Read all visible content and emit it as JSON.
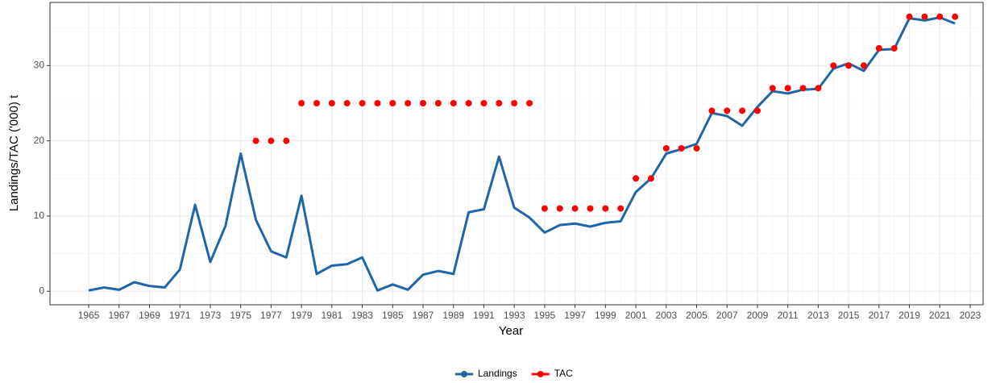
{
  "chart_data": {
    "type": "line",
    "x_label": "Year",
    "y_label": "Landings/TAC ('000) t",
    "xlim": [
      1962.45,
      2023.85
    ],
    "ylim": [
      -1.8,
      38.4
    ],
    "xticks": [
      1965,
      1967,
      1969,
      1971,
      1973,
      1975,
      1977,
      1979,
      1981,
      1983,
      1985,
      1987,
      1989,
      1991,
      1993,
      1995,
      1997,
      1999,
      2001,
      2003,
      2005,
      2007,
      2009,
      2011,
      2013,
      2015,
      2017,
      2019,
      2021,
      2023
    ],
    "yticks": [
      0,
      10,
      20,
      30
    ],
    "grid": true,
    "minor_grid": true,
    "legend": "bottom",
    "series": [
      {
        "name": "Landings",
        "color": "#1f66a8",
        "style": "line",
        "x": [
          1965,
          1966,
          1967,
          1968,
          1969,
          1970,
          1971,
          1972,
          1973,
          1974,
          1975,
          1976,
          1977,
          1978,
          1979,
          1980,
          1981,
          1982,
          1983,
          1984,
          1985,
          1986,
          1987,
          1988,
          1989,
          1990,
          1991,
          1992,
          1993,
          1994,
          1995,
          1996,
          1997,
          1998,
          1999,
          2000,
          2001,
          2002,
          2003,
          2004,
          2005,
          2006,
          2007,
          2008,
          2009,
          2010,
          2011,
          2012,
          2013,
          2014,
          2015,
          2016,
          2017,
          2018,
          2019,
          2020,
          2021,
          2022
        ],
        "values": [
          0.1,
          0.5,
          0.2,
          1.2,
          0.7,
          0.5,
          2.9,
          11.5,
          3.9,
          8.7,
          18.3,
          9.5,
          5.3,
          4.5,
          12.7,
          2.3,
          3.4,
          3.6,
          4.5,
          0.1,
          0.9,
          0.2,
          2.2,
          2.7,
          2.3,
          10.5,
          10.9,
          17.9,
          11.1,
          9.8,
          7.8,
          8.8,
          9.0,
          8.6,
          9.1,
          9.3,
          13.2,
          15.0,
          18.3,
          18.9,
          19.6,
          23.7,
          23.3,
          22.0,
          24.5,
          26.6,
          26.3,
          26.8,
          26.9,
          29.6,
          30.3,
          29.3,
          32.1,
          32.2,
          36.3,
          36.0,
          36.4,
          35.6
        ]
      },
      {
        "name": "TAC",
        "color": "#ff0000",
        "style": "point",
        "x": [
          1976,
          1977,
          1978,
          1979,
          1980,
          1981,
          1982,
          1983,
          1984,
          1985,
          1986,
          1987,
          1988,
          1989,
          1990,
          1991,
          1992,
          1993,
          1994,
          1995,
          1996,
          1997,
          1998,
          1999,
          2000,
          2001,
          2002,
          2003,
          2004,
          2005,
          2006,
          2007,
          2008,
          2009,
          2010,
          2011,
          2012,
          2013,
          2014,
          2015,
          2016,
          2017,
          2018,
          2019,
          2020,
          2021,
          2022
        ],
        "values": [
          20,
          20,
          20,
          25,
          25,
          25,
          25,
          25,
          25,
          25,
          25,
          25,
          25,
          25,
          25,
          25,
          25,
          25,
          25,
          11,
          11,
          11,
          11,
          11,
          11,
          15,
          15,
          19,
          19,
          19,
          24,
          24,
          24,
          24,
          27,
          27,
          27,
          27,
          30,
          30,
          30,
          32.3,
          32.3,
          36.5,
          36.5,
          36.5,
          36.5
        ]
      }
    ]
  }
}
